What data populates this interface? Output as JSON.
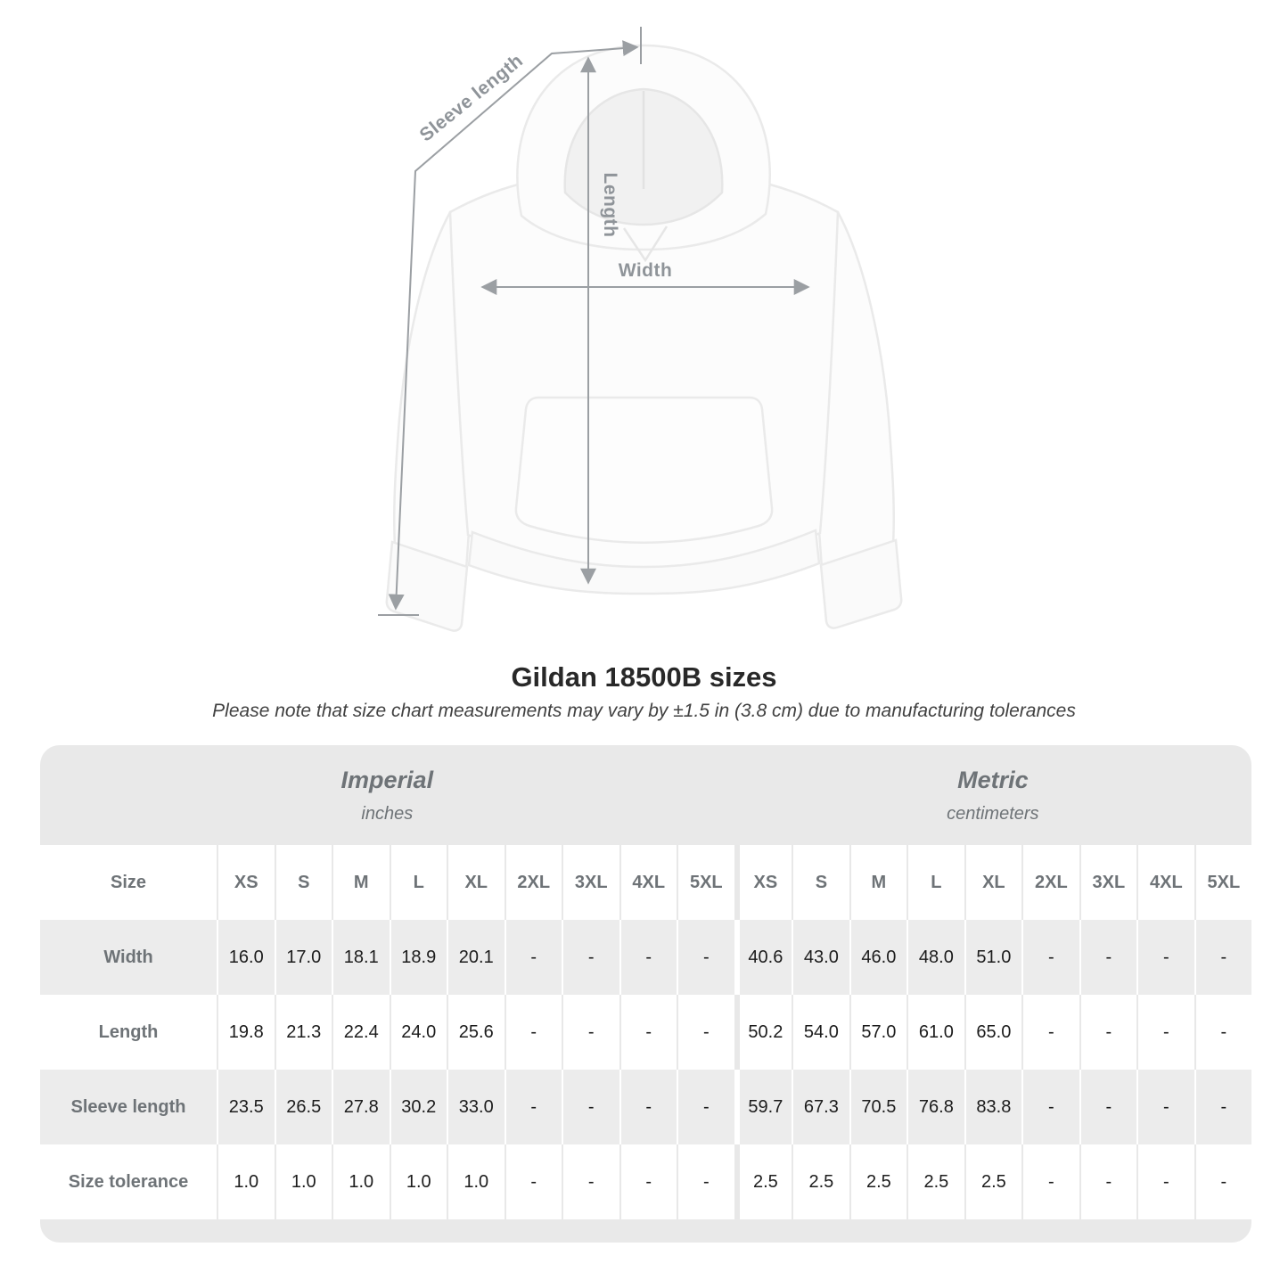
{
  "diagram": {
    "sleeve_label": "Sleeve length",
    "length_label": "Length",
    "width_label": "Width"
  },
  "header": {
    "title": "Gildan 18500B sizes",
    "subtitle": "Please note that size chart measurements may vary by ±1.5 in (3.8 cm) due to manufacturing tolerances"
  },
  "table": {
    "groups": [
      {
        "label": "Imperial",
        "units": "inches"
      },
      {
        "label": "Metric",
        "units": "centimeters"
      }
    ],
    "size_column_header": "Size",
    "sizes": [
      "XS",
      "S",
      "M",
      "L",
      "XL",
      "2XL",
      "3XL",
      "4XL",
      "5XL"
    ],
    "rows": [
      {
        "label": "Width",
        "imperial": [
          "16.0",
          "17.0",
          "18.1",
          "18.9",
          "20.1",
          "-",
          "-",
          "-",
          "-"
        ],
        "metric": [
          "40.6",
          "43.0",
          "46.0",
          "48.0",
          "51.0",
          "-",
          "-",
          "-",
          "-"
        ]
      },
      {
        "label": "Length",
        "imperial": [
          "19.8",
          "21.3",
          "22.4",
          "24.0",
          "25.6",
          "-",
          "-",
          "-",
          "-"
        ],
        "metric": [
          "50.2",
          "54.0",
          "57.0",
          "61.0",
          "65.0",
          "-",
          "-",
          "-",
          "-"
        ]
      },
      {
        "label": "Sleeve length",
        "imperial": [
          "23.5",
          "26.5",
          "27.8",
          "30.2",
          "33.0",
          "-",
          "-",
          "-",
          "-"
        ],
        "metric": [
          "59.7",
          "67.3",
          "70.5",
          "76.8",
          "83.8",
          "-",
          "-",
          "-",
          "-"
        ]
      },
      {
        "label": "Size tolerance",
        "imperial": [
          "1.0",
          "1.0",
          "1.0",
          "1.0",
          "1.0",
          "-",
          "-",
          "-",
          "-"
        ],
        "metric": [
          "2.5",
          "2.5",
          "2.5",
          "2.5",
          "2.5",
          "-",
          "-",
          "-",
          "-"
        ]
      }
    ]
  },
  "colors": {
    "table_band": "#e9e9e9",
    "row_stripe": "#ececec",
    "heading_text": "#6e7377",
    "value_text": "#1c1c1c",
    "annotation": "#8f9499",
    "title_text": "#282828"
  }
}
